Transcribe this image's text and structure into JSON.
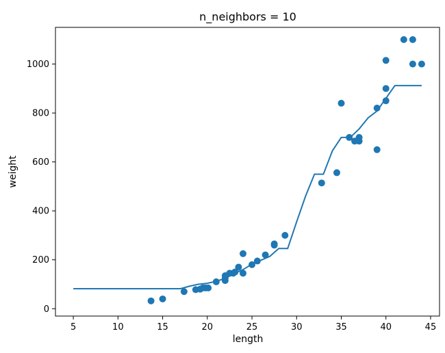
{
  "chart_data": {
    "type": "scatter",
    "title": "n_neighbors = 10",
    "xlabel": "length",
    "ylabel": "weight",
    "xlim": [
      3.0,
      46.0
    ],
    "ylim": [
      -30,
      1150
    ],
    "xticks": [
      5,
      10,
      15,
      20,
      25,
      30,
      35,
      40,
      45
    ],
    "yticks": [
      0,
      200,
      400,
      600,
      800,
      1000
    ],
    "colors": {
      "series": "#1f77b4",
      "axes": "#000000"
    },
    "grid": false,
    "series": [
      {
        "type": "scatter",
        "points": [
          [
            13.7,
            32
          ],
          [
            15.0,
            40
          ],
          [
            17.4,
            70
          ],
          [
            18.7,
            78
          ],
          [
            19.2,
            80
          ],
          [
            19.5,
            85
          ],
          [
            19.8,
            85
          ],
          [
            20.1,
            85
          ],
          [
            21.0,
            110
          ],
          [
            22.0,
            115
          ],
          [
            22.0,
            125
          ],
          [
            22.0,
            135
          ],
          [
            22.5,
            145
          ],
          [
            22.9,
            145
          ],
          [
            23.1,
            150
          ],
          [
            23.5,
            170
          ],
          [
            24.0,
            145
          ],
          [
            24.0,
            225
          ],
          [
            25.0,
            180
          ],
          [
            25.6,
            195
          ],
          [
            26.5,
            220
          ],
          [
            27.5,
            260
          ],
          [
            27.5,
            265
          ],
          [
            28.7,
            300
          ],
          [
            32.8,
            514
          ],
          [
            34.5,
            556
          ],
          [
            35.0,
            840
          ],
          [
            35.9,
            700
          ],
          [
            36.5,
            685
          ],
          [
            37.0,
            685
          ],
          [
            37.0,
            700
          ],
          [
            39.0,
            650
          ],
          [
            39.0,
            820
          ],
          [
            40.0,
            850
          ],
          [
            40.0,
            900
          ],
          [
            40.0,
            1015
          ],
          [
            42.0,
            1100
          ],
          [
            43.0,
            1100
          ],
          [
            43.0,
            1000
          ],
          [
            44.0,
            1000
          ]
        ]
      },
      {
        "type": "line",
        "points": [
          [
            5,
            82
          ],
          [
            10,
            82
          ],
          [
            15,
            82
          ],
          [
            17,
            82
          ],
          [
            18,
            92
          ],
          [
            19,
            100
          ],
          [
            20,
            104
          ],
          [
            21,
            112
          ],
          [
            22,
            124
          ],
          [
            23,
            143
          ],
          [
            24,
            160
          ],
          [
            25,
            182
          ],
          [
            26,
            198
          ],
          [
            27,
            214
          ],
          [
            28,
            246
          ],
          [
            29,
            246
          ],
          [
            30,
            355
          ],
          [
            31,
            460
          ],
          [
            32,
            550
          ],
          [
            33,
            550
          ],
          [
            34,
            645
          ],
          [
            35,
            700
          ],
          [
            36,
            700
          ],
          [
            37,
            735
          ],
          [
            38,
            780
          ],
          [
            39,
            808
          ],
          [
            40,
            860
          ],
          [
            41,
            912
          ],
          [
            42,
            912
          ],
          [
            43,
            912
          ],
          [
            44,
            912
          ]
        ]
      }
    ]
  }
}
